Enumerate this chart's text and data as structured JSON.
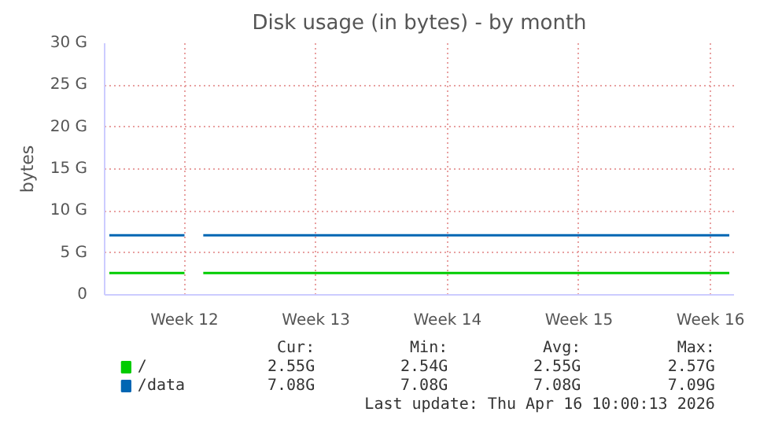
{
  "chart_data": {
    "type": "line",
    "title": "Disk usage (in bytes) - by month",
    "ylabel": "bytes",
    "categories": [
      null,
      null,
      null,
      null,
      null,
      null,
      null,
      null,
      "Week 12",
      null,
      null,
      null,
      null,
      null,
      null,
      null,
      null,
      null,
      null,
      null,
      null,
      null,
      "Week 13",
      null,
      null,
      null,
      null,
      null,
      null,
      null,
      null,
      null,
      null,
      null,
      null,
      null,
      "Week 14",
      null,
      null,
      null,
      null,
      null,
      null,
      null,
      null,
      null,
      null,
      null,
      null,
      null,
      "Week 15",
      null,
      null,
      null,
      null,
      null,
      null,
      null,
      null,
      null,
      null,
      null,
      null,
      null,
      "Week 16",
      null,
      null
    ],
    "ylim": [
      0,
      30
    ],
    "yticks": [
      0,
      {
        "value": 5,
        "label": "5 G"
      },
      {
        "value": 10,
        "label": "10 G"
      },
      {
        "value": 15,
        "label": "15 G"
      },
      {
        "value": 20,
        "label": "20 G"
      },
      {
        "value": 25,
        "label": "25 G"
      },
      {
        "value": 30,
        "label": "30 G"
      }
    ],
    "series": [
      {
        "name": "/",
        "color": "#00cc00",
        "values": [
          2.6,
          2.6,
          2.6,
          2.6,
          2.6,
          2.6,
          2.6,
          2.6,
          2.6,
          null,
          2.6,
          2.6,
          2.6,
          2.6,
          2.6,
          2.6,
          2.6,
          2.6,
          2.6,
          2.6,
          2.6,
          2.6,
          2.6,
          2.6,
          2.6,
          2.6,
          2.6,
          2.6,
          2.6,
          2.6,
          2.6,
          2.6,
          2.6,
          2.6,
          2.6,
          2.6,
          2.6,
          2.6,
          2.6,
          2.6,
          2.6,
          2.6,
          2.6,
          2.6,
          2.6,
          2.6,
          2.6,
          2.6,
          2.6,
          2.6,
          2.6,
          2.6,
          2.6,
          2.6,
          2.6,
          2.6,
          2.6,
          2.6,
          2.6,
          2.6,
          2.6,
          2.6,
          2.6,
          2.6,
          2.6,
          2.6,
          2.6
        ]
      },
      {
        "name": "/data",
        "color": "#0066b3",
        "values": [
          7.1,
          7.1,
          7.1,
          7.1,
          7.1,
          7.1,
          7.1,
          7.1,
          7.1,
          null,
          7.1,
          7.1,
          7.1,
          7.1,
          7.1,
          7.1,
          7.1,
          7.1,
          7.1,
          7.1,
          7.1,
          7.1,
          7.1,
          7.1,
          7.1,
          7.1,
          7.1,
          7.1,
          7.1,
          7.1,
          7.1,
          7.1,
          7.1,
          7.1,
          7.1,
          7.1,
          7.1,
          7.1,
          7.1,
          7.1,
          7.1,
          7.1,
          7.1,
          7.1,
          7.1,
          7.1,
          7.1,
          7.1,
          7.1,
          7.1,
          7.1,
          7.1,
          7.1,
          7.1,
          7.1,
          7.1,
          7.1,
          7.1,
          7.1,
          7.1,
          7.1,
          7.1,
          7.1,
          7.1,
          7.1,
          7.1,
          7.1
        ]
      }
    ],
    "grid": true,
    "legend": "bottom",
    "marker": "none",
    "line_style": "solid",
    "annotations": [
      "Cur:",
      "Min:",
      "Avg:",
      "Max:",
      "2.55G",
      "2.54G",
      "2.55G",
      "2.57G",
      "7.08G",
      "7.08G",
      "7.08G",
      "7.09G",
      "Last update: Thu Apr 16 10:00:13 2026"
    ]
  }
}
